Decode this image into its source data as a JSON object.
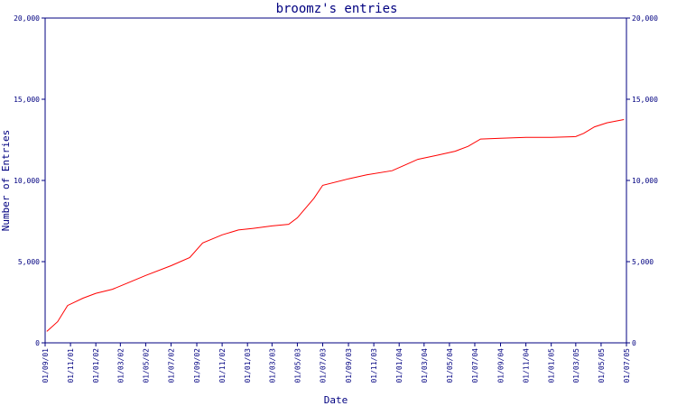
{
  "chart_data": {
    "type": "line",
    "title": "broomz's entries",
    "xlabel": "Date",
    "ylabel": "Number of Entries",
    "ylim": [
      0,
      20000
    ],
    "yticks": [
      {
        "value": 0,
        "label": "0"
      },
      {
        "value": 5000,
        "label": "5,000"
      },
      {
        "value": 10000,
        "label": "10,000"
      },
      {
        "value": 15000,
        "label": "15,000"
      },
      {
        "value": 20000,
        "label": "20,000"
      }
    ],
    "xlim": [
      "2001-09-01",
      "2005-07-01"
    ],
    "xticks": [
      {
        "date": "2001-09-01",
        "label": "01/09/01"
      },
      {
        "date": "2001-11-01",
        "label": "01/11/01"
      },
      {
        "date": "2002-01-01",
        "label": "01/01/02"
      },
      {
        "date": "2002-03-01",
        "label": "01/03/02"
      },
      {
        "date": "2002-05-01",
        "label": "01/05/02"
      },
      {
        "date": "2002-07-01",
        "label": "01/07/02"
      },
      {
        "date": "2002-09-01",
        "label": "01/09/02"
      },
      {
        "date": "2002-11-01",
        "label": "01/11/02"
      },
      {
        "date": "2003-01-01",
        "label": "01/01/03"
      },
      {
        "date": "2003-03-01",
        "label": "01/03/03"
      },
      {
        "date": "2003-05-01",
        "label": "01/05/03"
      },
      {
        "date": "2003-07-01",
        "label": "01/07/03"
      },
      {
        "date": "2003-09-01",
        "label": "01/09/03"
      },
      {
        "date": "2003-11-01",
        "label": "01/11/03"
      },
      {
        "date": "2004-01-01",
        "label": "01/01/04"
      },
      {
        "date": "2004-03-01",
        "label": "01/03/04"
      },
      {
        "date": "2004-05-01",
        "label": "01/05/04"
      },
      {
        "date": "2004-07-01",
        "label": "01/07/04"
      },
      {
        "date": "2004-09-01",
        "label": "01/09/04"
      },
      {
        "date": "2004-11-01",
        "label": "01/11/04"
      },
      {
        "date": "2005-01-01",
        "label": "01/01/05"
      },
      {
        "date": "2005-03-01",
        "label": "01/03/05"
      },
      {
        "date": "2005-05-01",
        "label": "01/05/05"
      },
      {
        "date": "2005-07-01",
        "label": "01/07/05"
      }
    ],
    "grid": false,
    "series": [
      {
        "color": "#ff0000",
        "points": [
          [
            "2001-09-05",
            700
          ],
          [
            "2001-10-01",
            1300
          ],
          [
            "2001-10-25",
            2300
          ],
          [
            "2001-12-01",
            2750
          ],
          [
            "2002-01-01",
            3050
          ],
          [
            "2002-02-10",
            3300
          ],
          [
            "2002-03-15",
            3650
          ],
          [
            "2002-05-01",
            4150
          ],
          [
            "2002-07-01",
            4750
          ],
          [
            "2002-08-15",
            5250
          ],
          [
            "2002-09-15",
            6150
          ],
          [
            "2002-11-01",
            6650
          ],
          [
            "2002-12-10",
            6950
          ],
          [
            "2003-01-15",
            7050
          ],
          [
            "2003-03-01",
            7200
          ],
          [
            "2003-04-10",
            7300
          ],
          [
            "2003-05-01",
            7700
          ],
          [
            "2003-06-10",
            8900
          ],
          [
            "2003-07-01",
            9700
          ],
          [
            "2003-09-01",
            10100
          ],
          [
            "2003-10-15",
            10350
          ],
          [
            "2003-12-15",
            10600
          ],
          [
            "2004-01-15",
            10950
          ],
          [
            "2004-02-15",
            11300
          ],
          [
            "2004-04-01",
            11550
          ],
          [
            "2004-05-15",
            11800
          ],
          [
            "2004-06-15",
            12100
          ],
          [
            "2004-07-15",
            12550
          ],
          [
            "2004-09-01",
            12600
          ],
          [
            "2004-11-01",
            12650
          ],
          [
            "2005-01-01",
            12650
          ],
          [
            "2005-03-01",
            12700
          ],
          [
            "2005-03-20",
            12900
          ],
          [
            "2005-04-15",
            13300
          ],
          [
            "2005-05-15",
            13550
          ],
          [
            "2005-06-25",
            13750
          ]
        ]
      }
    ]
  }
}
